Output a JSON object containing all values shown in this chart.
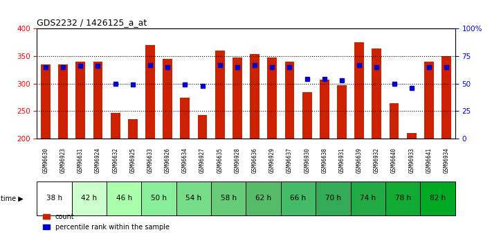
{
  "title": "GDS2232 / 1426125_a_at",
  "samples": [
    "GSM96630",
    "GSM96923",
    "GSM96631",
    "GSM96924",
    "GSM96632",
    "GSM96925",
    "GSM96633",
    "GSM96926",
    "GSM96634",
    "GSM96927",
    "GSM96635",
    "GSM96928",
    "GSM96636",
    "GSM96929",
    "GSM96637",
    "GSM96930",
    "GSM96638",
    "GSM96931",
    "GSM96639",
    "GSM96932",
    "GSM96640",
    "GSM96933",
    "GSM96641",
    "GSM96934"
  ],
  "time_groups": [
    {
      "label": "38 h",
      "indices": [
        0,
        1
      ],
      "color": "#ffffff"
    },
    {
      "label": "42 h",
      "indices": [
        2,
        3
      ],
      "color": "#ccffcc"
    },
    {
      "label": "46 h",
      "indices": [
        4,
        5
      ],
      "color": "#aaeebb"
    },
    {
      "label": "50 h",
      "indices": [
        6,
        7
      ],
      "color": "#88ddaa"
    },
    {
      "label": "54 h",
      "indices": [
        8,
        9
      ],
      "color": "#88dd99"
    },
    {
      "label": "58 h",
      "indices": [
        10,
        11
      ],
      "color": "#77cc88"
    },
    {
      "label": "62 h",
      "indices": [
        12,
        13
      ],
      "color": "#66bb77"
    },
    {
      "label": "66 h",
      "indices": [
        14,
        15
      ],
      "color": "#55cc77"
    },
    {
      "label": "70 h",
      "indices": [
        16,
        17
      ],
      "color": "#44bb66"
    },
    {
      "label": "74 h",
      "indices": [
        18,
        19
      ],
      "color": "#33aa55"
    },
    {
      "label": "78 h",
      "indices": [
        20,
        21
      ],
      "color": "#22aa44"
    },
    {
      "label": "82 h",
      "indices": [
        22,
        23
      ],
      "color": "#11aa33"
    }
  ],
  "count_values": [
    335,
    335,
    340,
    340,
    247,
    236,
    370,
    345,
    275,
    243,
    360,
    347,
    354,
    348,
    340,
    285,
    307,
    297,
    375,
    364,
    265,
    210,
    340,
    350
  ],
  "percentile_values": [
    65,
    65,
    66,
    66,
    50,
    49,
    67,
    65,
    49,
    48,
    67,
    65,
    67,
    65,
    65,
    54,
    54,
    53,
    67,
    65,
    50,
    46,
    65,
    65
  ],
  "y_min": 200,
  "y_max": 400,
  "bar_color": "#cc2200",
  "dot_color": "#0000cc",
  "sample_bg": "#d0d0d0",
  "time_border_color": "#000000"
}
